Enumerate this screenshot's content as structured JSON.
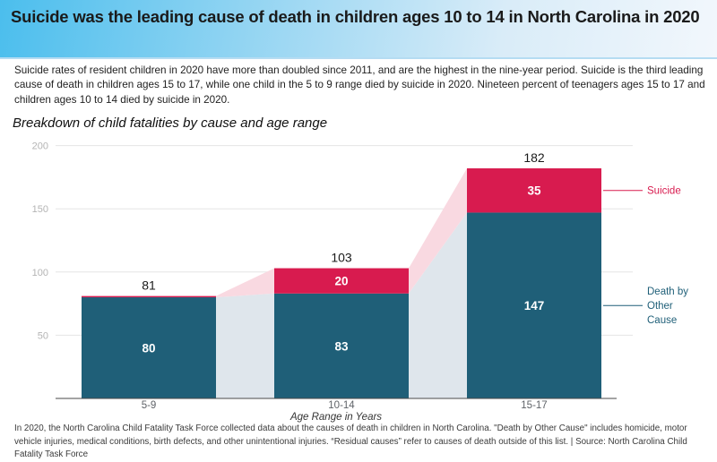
{
  "header": {
    "title": "Suicide was the leading cause of death in children ages 10 to 14 in North Carolina in 2020",
    "gradient_start": "#4bbeed",
    "gradient_end": "#f2f7fc"
  },
  "intro": {
    "text": "Suicide rates of resident children in 2020 have more than doubled since 2011, and are the highest in the nine-year period. Suicide is the third leading cause of death in children ages 15 to 17, while one child in the 5 to 9 range died by suicide in 2020. Nineteen percent of teenagers ages 15 to 17 and children ages 10 to 14 died by suicide in 2020."
  },
  "chart_title": "Breakdown of child fatalities by cause and age range",
  "chart_data": {
    "type": "bar",
    "subtype": "stacked-ribbon",
    "title": "Breakdown of child fatalities by cause and age range",
    "categories": [
      "5-9",
      "10-14",
      "15-17"
    ],
    "series": [
      {
        "name": "Death by Other Cause",
        "color": "#1f5f78",
        "ribbon_color": "#dfe6ec",
        "values": [
          80,
          83,
          147
        ]
      },
      {
        "name": "Suicide",
        "color": "#d81b4f",
        "ribbon_color": "#f9d9e1",
        "values": [
          1,
          20,
          35
        ]
      }
    ],
    "totals": [
      81,
      103,
      182
    ],
    "xlabel": "Age Range in Years",
    "ylabel": "",
    "ylim": [
      0,
      210
    ],
    "yticks": [
      50,
      100,
      150,
      200
    ],
    "grid": true,
    "legend_position": "right",
    "legend": [
      {
        "label": "Suicide",
        "lines": [
          "Suicide"
        ],
        "color": "#d81b4f"
      },
      {
        "label": "Death by Other Cause",
        "lines": [
          "Death by",
          "Other",
          "Cause"
        ],
        "color": "#1f5f78"
      }
    ],
    "colors": {
      "gridline": "#e5e5e5",
      "y_tick_label": "#b4b4b4",
      "x_tick_label": "#5f6368",
      "axis_line": "#4a4a4a",
      "total_label": "#1a1a1a",
      "segment_label": "#ffffff"
    }
  },
  "footer": {
    "text": "In 2020, the North Carolina Child Fatality Task Force collected data about the causes of death in children in North Carolina. \"Death by Other Cause\" includes homicide, motor vehicle injuries, medical conditions, birth defects, and other unintentional injuries. “Residual causes” refer to causes of death outside of this list. | Source: North Carolina Child Fatality Task Force"
  }
}
